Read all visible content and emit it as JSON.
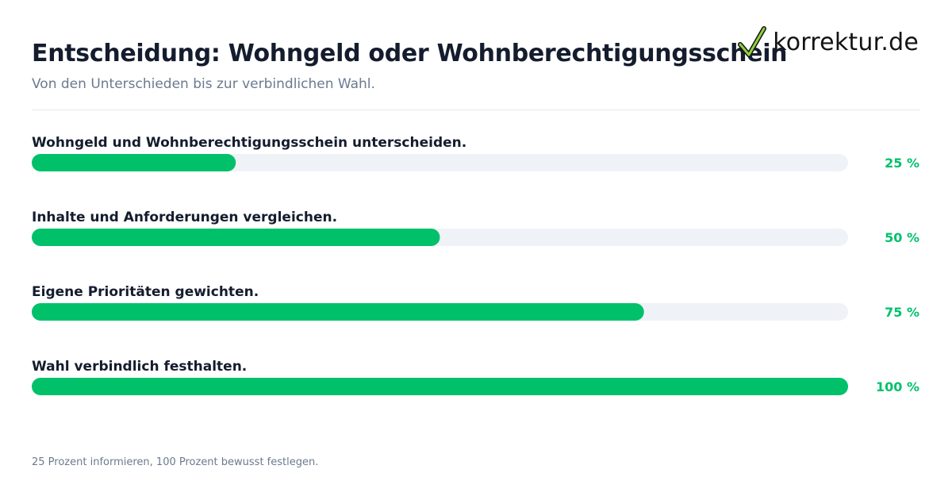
{
  "header": {
    "title": "Entscheidung: Wohngeld oder Wohnberechtigungsschein",
    "subtitle": "Von den Unterschieden bis zur verbindlichen Wahl."
  },
  "logo": {
    "text": "korrektur.de",
    "icon": "checkmark-icon"
  },
  "footer": {
    "note": "25 Prozent informieren, 100 Prozent bewusst festlegen."
  },
  "colors": {
    "accent": "#00c16a",
    "track": "#eff3f7",
    "label": "#141c2e"
  },
  "chart_data": {
    "type": "bar",
    "orientation": "horizontal",
    "categories": [
      "Wohngeld und Wohnberechtigungsschein unterscheiden.",
      "Inhalte und Anforderungen vergleichen.",
      "Eigene Prioritäten gewichten.",
      "Wahl verbindlich festhalten."
    ],
    "values": [
      25,
      50,
      75,
      100
    ],
    "value_labels": [
      "25 %",
      "50 %",
      "75 %",
      "100 %"
    ],
    "xlim": [
      0,
      100
    ],
    "grid": false,
    "legend": "none"
  }
}
